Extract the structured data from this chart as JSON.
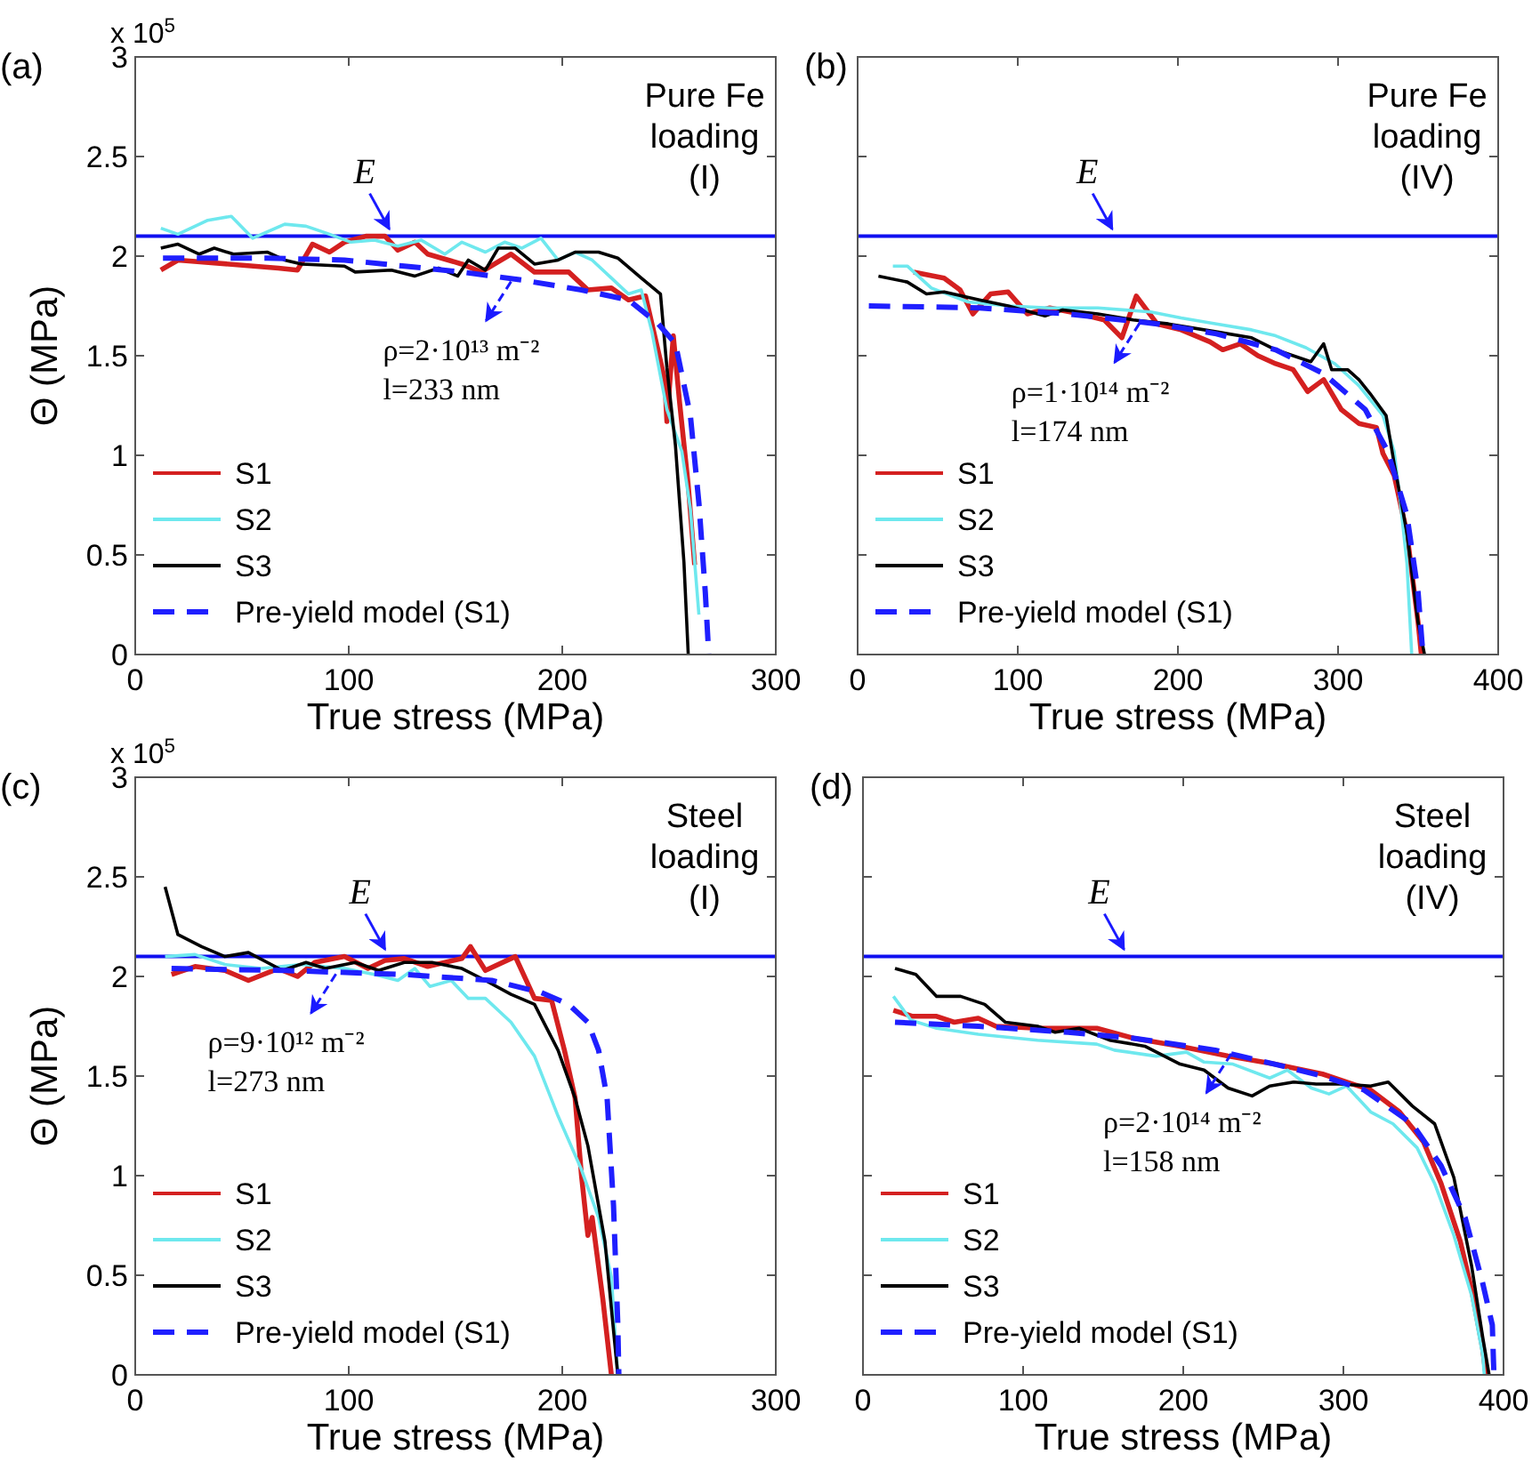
{
  "chart_data": [
    {
      "type": "line",
      "title": "(a)",
      "subtitle": "Pure Fe\nloading\n(I)",
      "xlabel": "True stress (MPa)",
      "ylabel": "Θ (MPa)",
      "xlim": [
        0,
        300
      ],
      "xticks": [
        0,
        100,
        200,
        300
      ],
      "ylim": [
        0,
        3
      ],
      "yticks": [
        0,
        0.5,
        1,
        1.5,
        2,
        2.5,
        3
      ],
      "legend": "bottom left",
      "ref_lines": [
        {
          "axis": "y",
          "value": 2.1,
          "color": "#1010f0"
        }
      ],
      "annotations": [
        "x 10$^{5}$",
        {
          "text": "E",
          "x": 119,
          "y": 2.1
        },
        {
          "text": "ρ=2·10¹³ m⁻²\nl=233 nm",
          "x": 176,
          "y": 1.89
        }
      ],
      "series": [
        {
          "name": "S1",
          "color": "#d42020",
          "x": [
            12,
            20,
            67,
            76,
            83,
            91,
            98,
            108,
            117,
            123,
            131,
            137,
            153,
            162,
            176,
            187,
            203,
            212,
            223,
            231,
            239,
            248,
            249,
            252,
            255,
            259,
            262
          ],
          "values": [
            1.93,
            1.98,
            1.94,
            1.93,
            2.06,
            2.02,
            2.07,
            2.1,
            2.1,
            2.03,
            2.07,
            2.01,
            1.96,
            1.92,
            2.01,
            1.92,
            1.92,
            1.83,
            1.84,
            1.78,
            1.8,
            1.38,
            1.17,
            1.6,
            1.26,
            0.85,
            0.45
          ]
        },
        {
          "name": "S2",
          "color": "#6ee8ee",
          "x": [
            12,
            20,
            34,
            45,
            55,
            70,
            80,
            91,
            101,
            112,
            123,
            134,
            145,
            153,
            164,
            173,
            181,
            190,
            198,
            206,
            214,
            223,
            231,
            237,
            242,
            249,
            256,
            260,
            264
          ],
          "values": [
            2.14,
            2.11,
            2.18,
            2.2,
            2.09,
            2.16,
            2.15,
            2.11,
            2.07,
            2.08,
            2.05,
            2.08,
            2.01,
            2.07,
            2.02,
            2.07,
            2.04,
            2.09,
            1.98,
            2.02,
            1.98,
            1.89,
            1.81,
            1.83,
            1.62,
            1.23,
            1.02,
            0.73,
            0.2
          ]
        },
        {
          "name": "S3",
          "color": "#000000",
          "x": [
            12,
            20,
            30,
            37,
            46,
            62,
            70,
            78,
            98,
            103,
            120,
            131,
            142,
            151,
            156,
            164,
            170,
            178,
            187,
            198,
            206,
            217,
            226,
            237,
            246,
            249,
            253,
            257,
            259
          ],
          "values": [
            2.04,
            2.06,
            2.01,
            2.04,
            2.01,
            2.02,
            1.98,
            1.96,
            1.95,
            1.92,
            1.93,
            1.9,
            1.94,
            1.9,
            1.98,
            1.93,
            2.04,
            2.04,
            1.96,
            1.98,
            2.02,
            2.02,
            1.99,
            1.89,
            1.81,
            1.44,
            1.05,
            0.46,
            0
          ]
        },
        {
          "name": "Pre-yield model (S1)",
          "color": "#1f1fff",
          "line_style": "dashed",
          "x": [
            13,
            62,
            98,
            126,
            153,
            181,
            209,
            231,
            245,
            253,
            260,
            264,
            267,
            268.6
          ],
          "values": [
            1.99,
            1.99,
            1.98,
            1.95,
            1.92,
            1.88,
            1.83,
            1.78,
            1.66,
            1.56,
            1.2,
            0.76,
            0.31,
            0
          ]
        }
      ]
    },
    {
      "type": "line",
      "title": "(b)",
      "subtitle": "Pure Fe\nloading\n(IV)",
      "xlabel": "True stress (MPa)",
      "xlim": [
        0,
        400
      ],
      "xticks": [
        0,
        100,
        200,
        300,
        400
      ],
      "ylim": [
        0,
        3
      ],
      "yticks": [
        0,
        0.5,
        1,
        1.5,
        2,
        2.5,
        3
      ],
      "tick_labels": "x",
      "legend": "bottom left",
      "ref_lines": [
        {
          "axis": "y",
          "value": 2.1,
          "color": "#1010f0"
        }
      ],
      "annotations": [
        {
          "text": "E",
          "x": 159,
          "y": 2.1
        },
        {
          "text": "ρ=1·10¹⁴ m⁻²\nl=174 nm",
          "x": 176,
          "y": 1.68
        }
      ],
      "series": [
        {
          "name": "S1",
          "color": "#d42020",
          "x": [
            35,
            54,
            64,
            72,
            83,
            94,
            106,
            120,
            139,
            154,
            165,
            174,
            187,
            202,
            220,
            228,
            239,
            250,
            261,
            272,
            281,
            291,
            302,
            313,
            324,
            328,
            335,
            343,
            350,
            352
          ],
          "values": [
            1.92,
            1.89,
            1.83,
            1.71,
            1.81,
            1.82,
            1.71,
            1.74,
            1.71,
            1.68,
            1.59,
            1.8,
            1.66,
            1.63,
            1.57,
            1.53,
            1.56,
            1.5,
            1.46,
            1.43,
            1.32,
            1.38,
            1.23,
            1.16,
            1.14,
            1.01,
            0.9,
            0.61,
            0.16,
            0
          ]
        },
        {
          "name": "S2",
          "color": "#6ee8ee",
          "x": [
            22,
            31,
            46,
            69,
            94,
            120,
            150,
            183,
            202,
            224,
            246,
            261,
            280,
            298,
            313,
            328,
            335,
            339,
            343,
            346
          ],
          "values": [
            1.95,
            1.95,
            1.84,
            1.77,
            1.75,
            1.74,
            1.74,
            1.72,
            1.69,
            1.66,
            1.63,
            1.6,
            1.54,
            1.46,
            1.35,
            1.2,
            1.02,
            0.76,
            0.46,
            0
          ]
        },
        {
          "name": "S3",
          "color": "#000000",
          "x": [
            13,
            31,
            43,
            54,
            76,
            94,
            117,
            128,
            150,
            172,
            194,
            224,
            246,
            261,
            272,
            283,
            291,
            296,
            306,
            313,
            320,
            330,
            335,
            343,
            350,
            354
          ],
          "values": [
            1.9,
            1.87,
            1.81,
            1.82,
            1.78,
            1.75,
            1.7,
            1.73,
            1.71,
            1.68,
            1.66,
            1.62,
            1.59,
            1.53,
            1.5,
            1.47,
            1.56,
            1.43,
            1.43,
            1.38,
            1.31,
            1.2,
            0.96,
            0.61,
            0.16,
            0
          ]
        },
        {
          "name": "Pre-yield model (S1)",
          "color": "#1f1fff",
          "line_style": "dashed",
          "x": [
            7,
            76,
            131,
            187,
            224,
            261,
            291,
            317,
            331,
            343,
            350,
            353
          ],
          "values": [
            1.75,
            1.74,
            1.71,
            1.66,
            1.61,
            1.53,
            1.41,
            1.23,
            1.02,
            0.7,
            0.31,
            0
          ]
        }
      ]
    },
    {
      "type": "line",
      "title": "(c)",
      "subtitle": "Steel\nloading\n(I)",
      "xlabel": "True stress (MPa)",
      "ylabel": "Θ (MPa)",
      "xlim": [
        0,
        300
      ],
      "xticks": [
        0,
        100,
        200,
        300
      ],
      "ylim": [
        0,
        3
      ],
      "yticks": [
        0,
        0.5,
        1,
        1.5,
        2,
        2.5,
        3
      ],
      "legend": "bottom left",
      "ref_lines": [
        {
          "axis": "y",
          "value": 2.1,
          "color": "#1010f0"
        }
      ],
      "annotations": [
        "x 10$^{5}$",
        {
          "text": "E",
          "x": 117,
          "y": 2.1
        },
        {
          "text": "ρ=9·10¹² m⁻²\nl=273 nm",
          "x": 94,
          "y": 2.03
        }
      ],
      "series": [
        {
          "name": "S1",
          "color": "#d42020",
          "x": [
            17,
            28,
            42,
            53,
            67,
            76,
            84,
            98,
            109,
            117,
            126,
            137,
            153,
            157,
            164,
            178,
            187,
            195,
            201,
            206,
            209,
            212,
            214,
            219,
            223
          ],
          "values": [
            2.01,
            2.05,
            2.03,
            1.98,
            2.04,
            2,
            2.07,
            2.1,
            2.04,
            2.08,
            2.09,
            2.05,
            2.09,
            2.15,
            2.03,
            2.1,
            1.89,
            1.88,
            1.63,
            1.39,
            1,
            0.7,
            0.79,
            0.38,
            0
          ]
        },
        {
          "name": "S2",
          "color": "#6ee8ee",
          "x": [
            14,
            28,
            42,
            59,
            78,
            98,
            112,
            123,
            131,
            138,
            148,
            156,
            164,
            176,
            187,
            198,
            209,
            217,
            223,
            226
          ],
          "values": [
            2.1,
            2.11,
            2.06,
            2.04,
            2.06,
            2.04,
            2.01,
            1.98,
            2.04,
            1.95,
            1.98,
            1.89,
            1.89,
            1.77,
            1.6,
            1.3,
            1.03,
            0.79,
            0.49,
            0
          ]
        },
        {
          "name": "S3",
          "color": "#000000",
          "x": [
            14,
            20,
            31,
            42,
            53,
            69,
            80,
            89,
            103,
            114,
            126,
            139,
            153,
            164,
            176,
            187,
            198,
            206,
            212,
            220,
            226
          ],
          "values": [
            2.45,
            2.21,
            2.15,
            2.1,
            2.12,
            2.03,
            2.07,
            2.04,
            2.07,
            2.03,
            2.07,
            2.07,
            2.04,
            1.98,
            1.91,
            1.86,
            1.63,
            1.39,
            1.15,
            0.67,
            0
          ]
        },
        {
          "name": "Pre-yield model (S1)",
          "color": "#1f1fff",
          "line_style": "dashed",
          "x": [
            17,
            70,
            126,
            167,
            190,
            203,
            212,
            217,
            221,
            224,
            226,
            226.5
          ],
          "values": [
            2.04,
            2.03,
            2.01,
            1.98,
            1.92,
            1.86,
            1.77,
            1.63,
            1.39,
            0.85,
            0.26,
            0
          ]
        }
      ]
    },
    {
      "type": "line",
      "title": "(d)",
      "subtitle": "Steel\nloading\n(IV)",
      "xlabel": "True stress (MPa)",
      "xlim": [
        0,
        400
      ],
      "xticks": [
        0,
        100,
        200,
        300,
        400
      ],
      "ylim": [
        0,
        3
      ],
      "yticks": [
        0,
        0.5,
        1,
        1.5,
        2,
        2.5,
        3
      ],
      "tick_labels": "x",
      "legend": "bottom left",
      "ref_lines": [
        {
          "axis": "y",
          "value": 2.1,
          "color": "#1010f0"
        }
      ],
      "annotations": [
        {
          "text": "E",
          "x": 163,
          "y": 2.1
        },
        {
          "text": "ρ=2·10¹⁴ m⁻²\nl=158 nm",
          "x": 230,
          "y": 1.63
        }
      ],
      "series": [
        {
          "name": "S1",
          "color": "#d42020",
          "x": [
            19,
            31,
            46,
            57,
            72,
            83,
            109,
            146,
            169,
            198,
            228,
            257,
            287,
            317,
            335,
            350,
            361,
            373,
            380,
            387,
            389
          ],
          "values": [
            1.83,
            1.8,
            1.8,
            1.77,
            1.79,
            1.75,
            1.74,
            1.74,
            1.69,
            1.65,
            1.6,
            1.56,
            1.51,
            1.43,
            1.32,
            1.17,
            0.96,
            0.67,
            0.43,
            0.13,
            0
          ]
        },
        {
          "name": "S2",
          "color": "#6ee8ee",
          "x": [
            19,
            30,
            46,
            72,
            109,
            146,
            157,
            183,
            202,
            213,
            231,
            254,
            265,
            280,
            291,
            302,
            317,
            331,
            346,
            357,
            369,
            380,
            387,
            388
          ],
          "values": [
            1.9,
            1.78,
            1.74,
            1.71,
            1.68,
            1.66,
            1.63,
            1.6,
            1.62,
            1.57,
            1.56,
            1.49,
            1.53,
            1.44,
            1.41,
            1.45,
            1.32,
            1.26,
            1.14,
            0.96,
            0.7,
            0.4,
            0.1,
            0
          ]
        },
        {
          "name": "S3",
          "color": "#000000",
          "x": [
            20,
            33,
            46,
            61,
            76,
            89,
            109,
            120,
            135,
            154,
            176,
            198,
            213,
            228,
            243,
            254,
            269,
            283,
            298,
            317,
            328,
            343,
            357,
            369,
            380,
            387,
            391
          ],
          "values": [
            2.04,
            2.01,
            1.9,
            1.9,
            1.86,
            1.77,
            1.75,
            1.72,
            1.74,
            1.68,
            1.65,
            1.56,
            1.53,
            1.44,
            1.4,
            1.45,
            1.47,
            1.46,
            1.46,
            1.45,
            1.47,
            1.35,
            1.26,
            0.99,
            0.55,
            0.19,
            0
          ]
        },
        {
          "name": "Pre-yield model (S1)",
          "color": "#1f1fff",
          "line_style": "dashed",
          "x": [
            20,
            72,
            128,
            169,
            220,
            257,
            287,
            313,
            343,
            361,
            376,
            387,
            393,
            394
          ],
          "values": [
            1.77,
            1.75,
            1.72,
            1.69,
            1.63,
            1.56,
            1.5,
            1.43,
            1.26,
            1.05,
            0.79,
            0.46,
            0.25,
            0
          ]
        }
      ]
    }
  ]
}
